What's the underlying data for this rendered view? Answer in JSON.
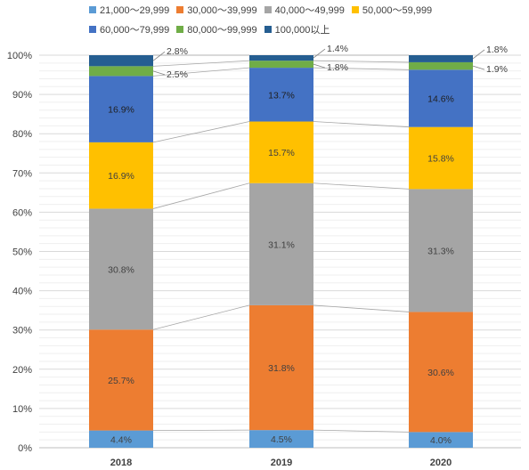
{
  "chart_data": {
    "type": "bar",
    "stacked": true,
    "percent": true,
    "categories": [
      "2018",
      "2019",
      "2020"
    ],
    "series": [
      {
        "name": "21,000～29,999",
        "color": "#5b9bd5",
        "values": [
          4.4,
          4.5,
          4.0
        ]
      },
      {
        "name": "30,000～39,999",
        "color": "#ed7d31",
        "values": [
          25.7,
          31.8,
          30.6
        ]
      },
      {
        "name": "40,000～49,999",
        "color": "#a5a5a5",
        "values": [
          30.8,
          31.1,
          31.3
        ]
      },
      {
        "name": "50,000～59,999",
        "color": "#ffc000",
        "values": [
          16.9,
          15.7,
          15.8
        ]
      },
      {
        "name": "60,000～79,999",
        "color": "#4472c4",
        "values": [
          16.9,
          13.7,
          14.6
        ]
      },
      {
        "name": "80,000～99,999",
        "color": "#70ad47",
        "values": [
          2.5,
          1.8,
          1.9
        ]
      },
      {
        "name": "100,000以上",
        "color": "#255e91",
        "values": [
          2.8,
          1.4,
          1.8
        ]
      }
    ],
    "data_labels": [
      [
        "4.4%",
        "4.5%",
        "4.0%"
      ],
      [
        "25.7%",
        "31.8%",
        "30.6%"
      ],
      [
        "30.8%",
        "31.1%",
        "31.3%"
      ],
      [
        "16.9%",
        "15.7%",
        "15.8%"
      ],
      [
        "16.9%",
        "13.7%",
        "14.6%"
      ],
      [
        "2.5%",
        "1.8%",
        "1.9%"
      ],
      [
        "2.8%",
        "1.4%",
        "1.8%"
      ]
    ],
    "y_ticks": [
      "0%",
      "10%",
      "20%",
      "30%",
      "40%",
      "50%",
      "60%",
      "70%",
      "80%",
      "90%",
      "100%"
    ],
    "ylim": [
      0,
      100
    ],
    "grid": true,
    "series_lines": true,
    "legend_position": "top"
  }
}
